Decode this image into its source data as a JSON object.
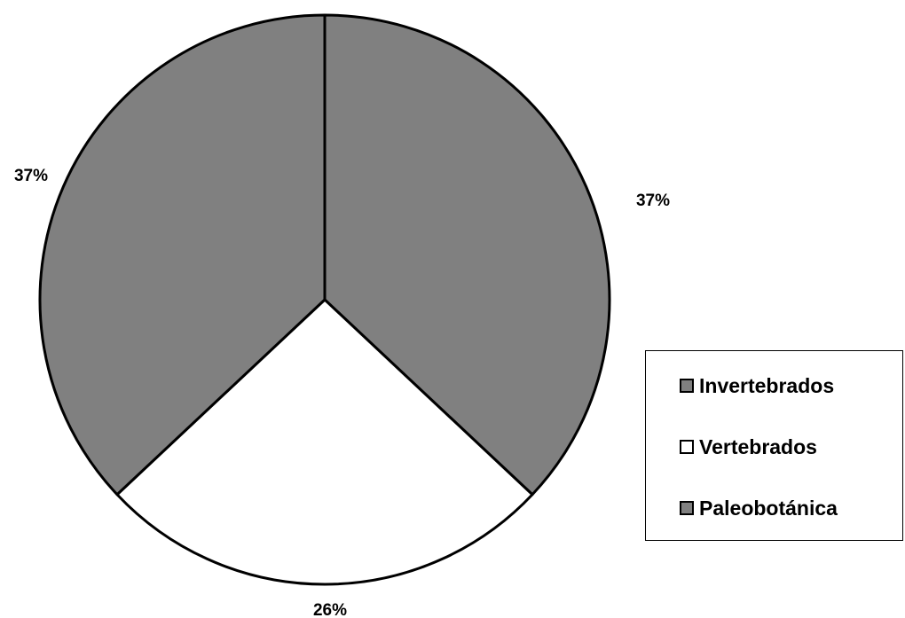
{
  "chart_data": {
    "type": "pie",
    "slices": [
      {
        "label": "Invertebrados",
        "value": 37,
        "display": "37%",
        "color": "#808080"
      },
      {
        "label": "Vertebrados",
        "value": 26,
        "display": "26%",
        "color": "#ffffff"
      },
      {
        "label": "Paleobotánica",
        "value": 37,
        "display": "37%",
        "color": "#808080"
      }
    ],
    "legend_position": "right",
    "start": "12 o'clock, clockwise"
  }
}
